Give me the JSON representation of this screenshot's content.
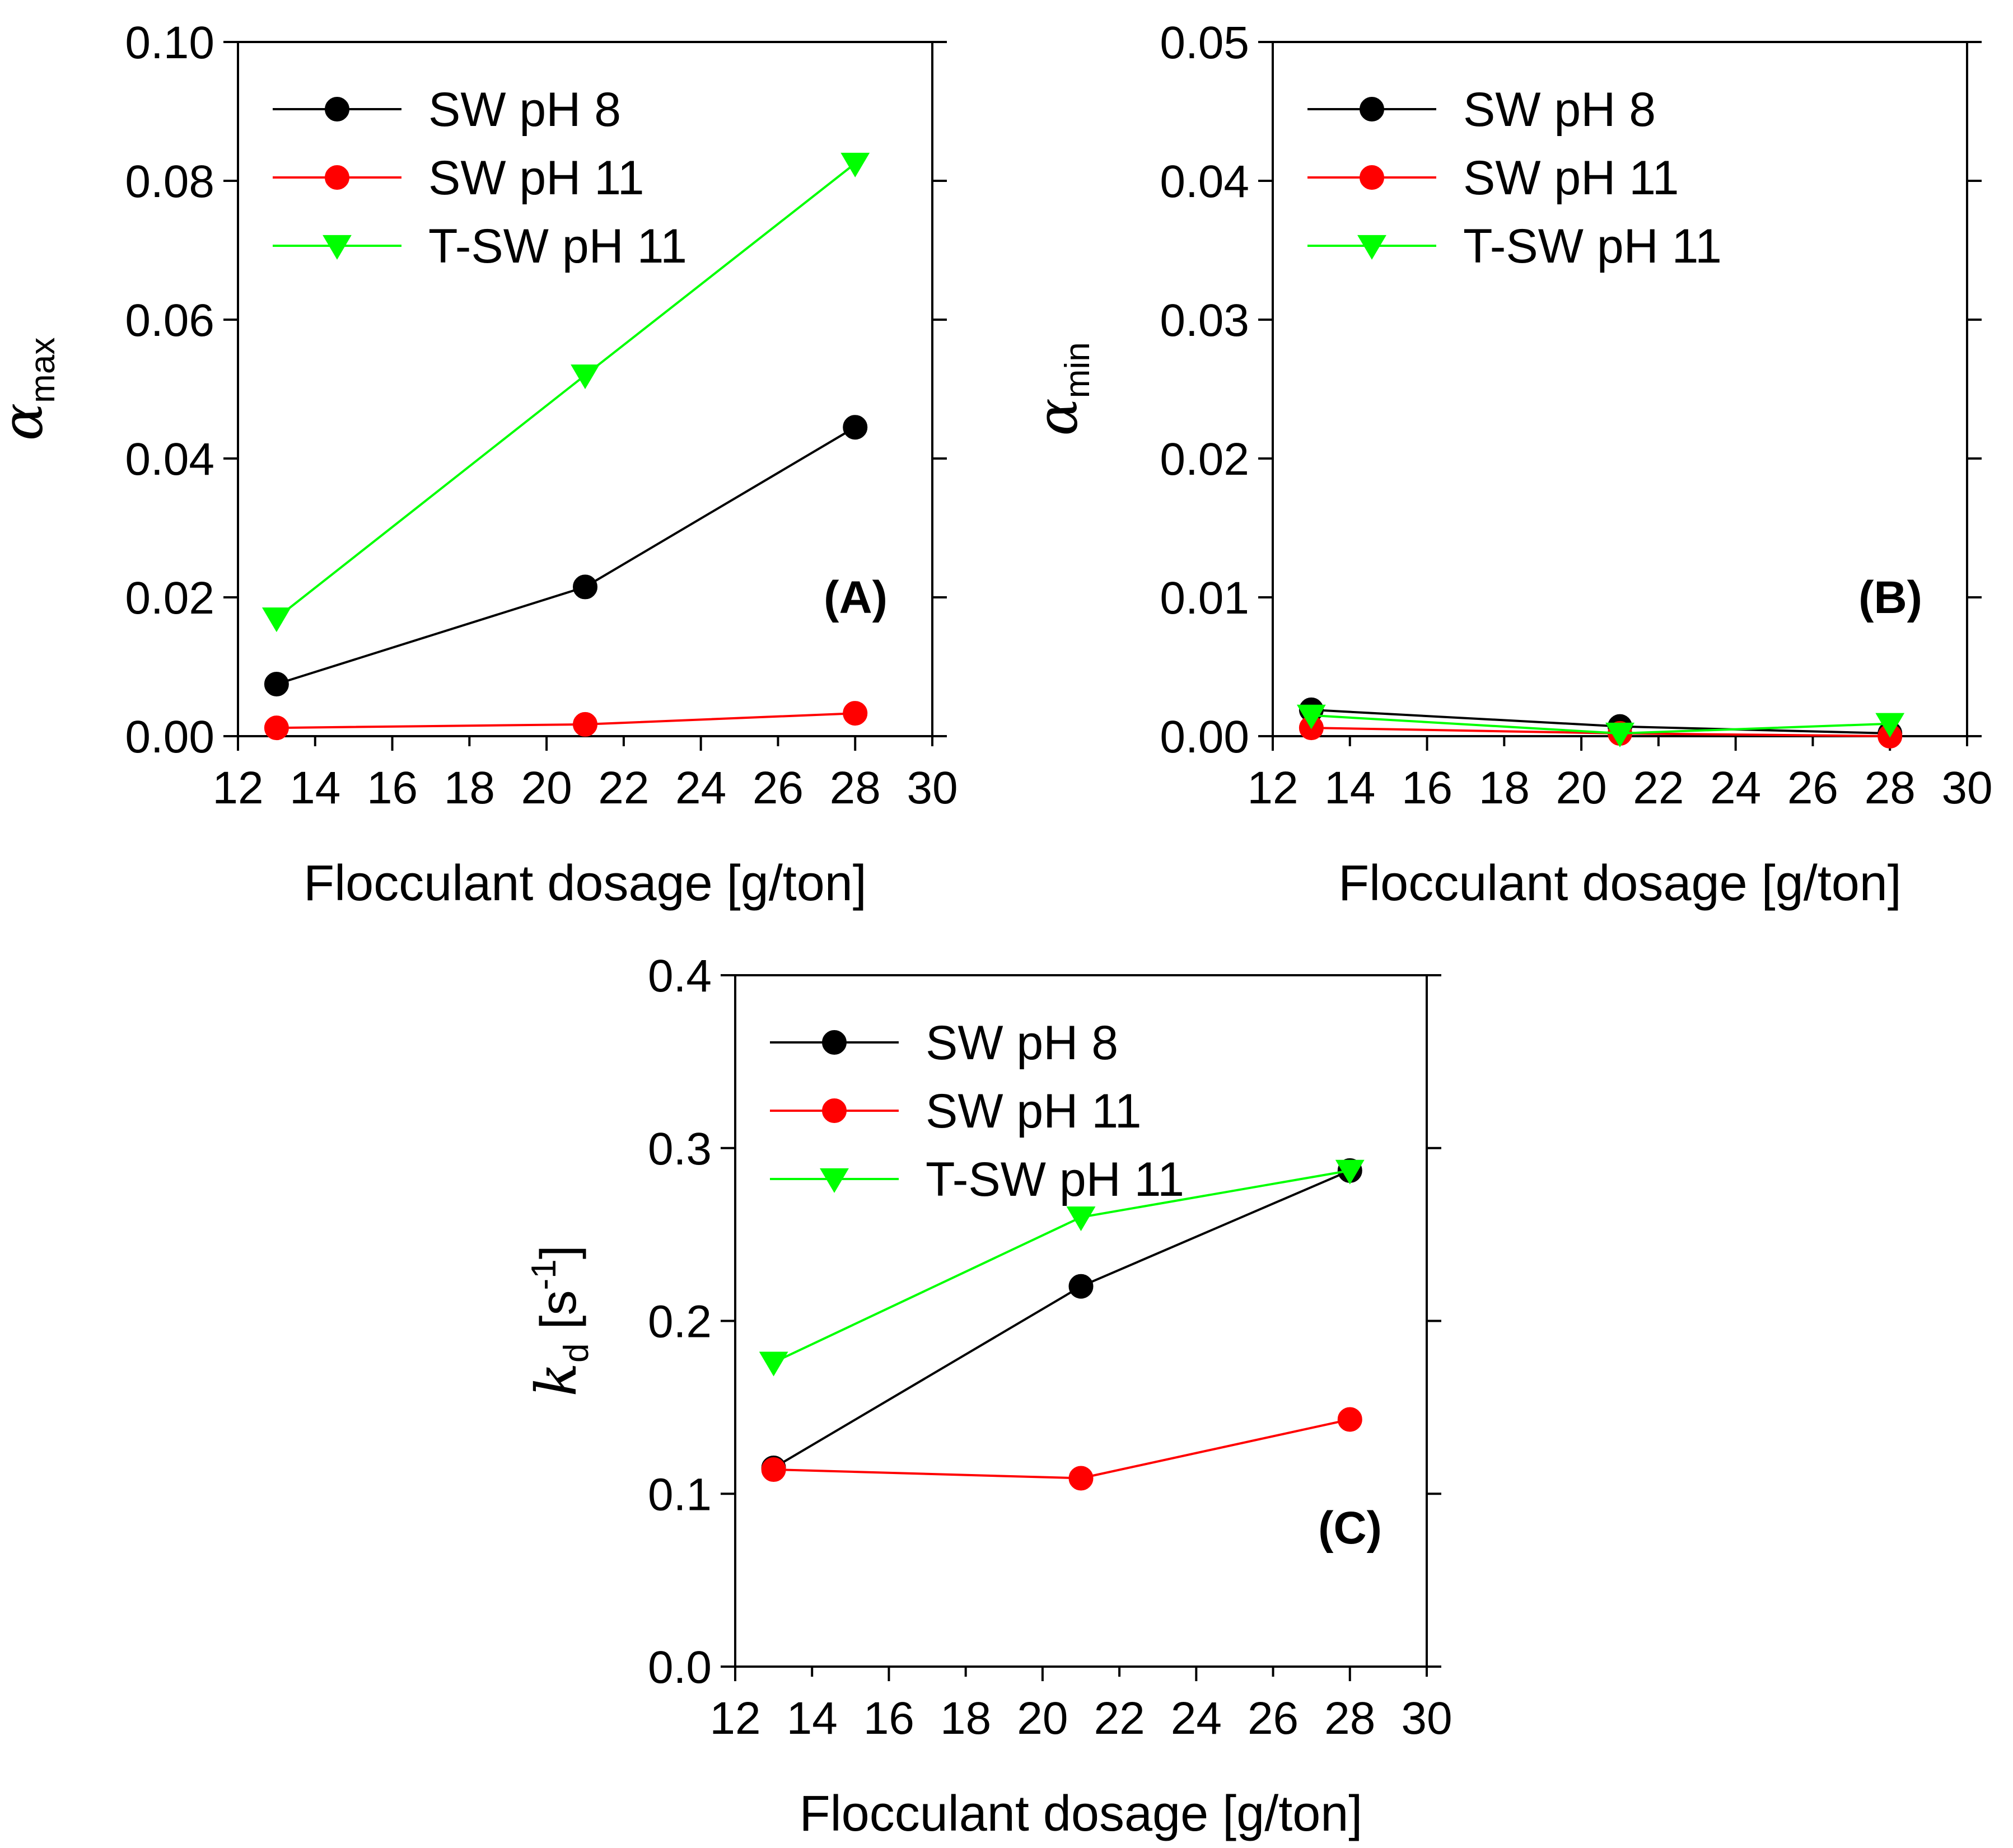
{
  "chart_data": [
    {
      "type": "line",
      "panel_label": "(A)",
      "xlabel": "Flocculant dosage [g/ton]",
      "ylabel_symbol": "α",
      "ylabel_subscript": "max",
      "xlim": [
        12,
        30
      ],
      "ylim": [
        0,
        0.1
      ],
      "xticks": [
        12,
        14,
        16,
        18,
        20,
        22,
        24,
        26,
        28,
        30
      ],
      "xtick_labels": [
        "12",
        "14",
        "16",
        "18",
        "20",
        "22",
        "24",
        "26",
        "28",
        "30"
      ],
      "yticks": [
        0,
        0.02,
        0.04,
        0.06,
        0.08,
        0.1
      ],
      "ytick_labels": [
        "0.00",
        "0.02",
        "0.04",
        "0.06",
        "0.08",
        "0.10"
      ],
      "legend_position": "top-left",
      "series": [
        {
          "name": "SW pH 8",
          "color": "#000000",
          "marker": "circle",
          "x": [
            13,
            21,
            28
          ],
          "values": [
            0.0075,
            0.0215,
            0.0445
          ]
        },
        {
          "name": "SW pH 11",
          "color": "#ff0000",
          "marker": "circle",
          "x": [
            13,
            21,
            28
          ],
          "values": [
            0.0012,
            0.0017,
            0.0033
          ]
        },
        {
          "name": "T-SW pH 11",
          "color": "#00ff00",
          "marker": "triangle-down",
          "x": [
            13,
            21,
            28
          ],
          "values": [
            0.017,
            0.052,
            0.0825
          ]
        }
      ]
    },
    {
      "type": "line",
      "panel_label": "(B)",
      "xlabel": "Flocculant dosage [g/ton]",
      "ylabel_symbol": "α",
      "ylabel_subscript": "min",
      "xlim": [
        12,
        30
      ],
      "ylim": [
        0,
        0.05
      ],
      "xticks": [
        12,
        14,
        16,
        18,
        20,
        22,
        24,
        26,
        28,
        30
      ],
      "xtick_labels": [
        "12",
        "14",
        "16",
        "18",
        "20",
        "22",
        "24",
        "26",
        "28",
        "30"
      ],
      "yticks": [
        0,
        0.01,
        0.02,
        0.03,
        0.04,
        0.05
      ],
      "ytick_labels": [
        "0.00",
        "0.01",
        "0.02",
        "0.03",
        "0.04",
        "0.05"
      ],
      "legend_position": "top-left",
      "series": [
        {
          "name": "SW pH 8",
          "color": "#000000",
          "marker": "circle",
          "x": [
            13,
            21,
            28
          ],
          "values": [
            0.0019,
            0.0007,
            0.0002
          ]
        },
        {
          "name": "SW pH 11",
          "color": "#ff0000",
          "marker": "circle",
          "x": [
            13,
            21,
            28
          ],
          "values": [
            0.0006,
            0.0002,
            0.0
          ]
        },
        {
          "name": "T-SW pH 11",
          "color": "#00ff00",
          "marker": "triangle-down",
          "x": [
            13,
            21,
            28
          ],
          "values": [
            0.0015,
            0.0002,
            0.0009
          ]
        }
      ]
    },
    {
      "type": "line",
      "panel_label": "(C)",
      "xlabel": "Flocculant dosage [g/ton]",
      "ylabel_symbol": "k",
      "ylabel_subscript": "d",
      "ylabel_unit": " [s",
      "ylabel_unit_sup": "-1",
      "ylabel_unit_end": "]",
      "xlim": [
        12,
        30
      ],
      "ylim": [
        0,
        0.4
      ],
      "xticks": [
        12,
        14,
        16,
        18,
        20,
        22,
        24,
        26,
        28,
        30
      ],
      "xtick_labels": [
        "12",
        "14",
        "16",
        "18",
        "20",
        "22",
        "24",
        "26",
        "28",
        "30"
      ],
      "yticks": [
        0,
        0.1,
        0.2,
        0.3,
        0.4
      ],
      "ytick_labels": [
        "0.0",
        "0.1",
        "0.2",
        "0.3",
        "0.4"
      ],
      "legend_position": "top-left",
      "series": [
        {
          "name": "SW pH 8",
          "color": "#000000",
          "marker": "circle",
          "x": [
            13,
            21,
            28
          ],
          "values": [
            0.115,
            0.22,
            0.287
          ]
        },
        {
          "name": "SW pH 11",
          "color": "#ff0000",
          "marker": "circle",
          "x": [
            13,
            21,
            28
          ],
          "values": [
            0.114,
            0.109,
            0.143
          ]
        },
        {
          "name": "T-SW pH 11",
          "color": "#00ff00",
          "marker": "triangle-down",
          "x": [
            13,
            21,
            28
          ],
          "values": [
            0.176,
            0.26,
            0.287
          ]
        }
      ]
    }
  ]
}
